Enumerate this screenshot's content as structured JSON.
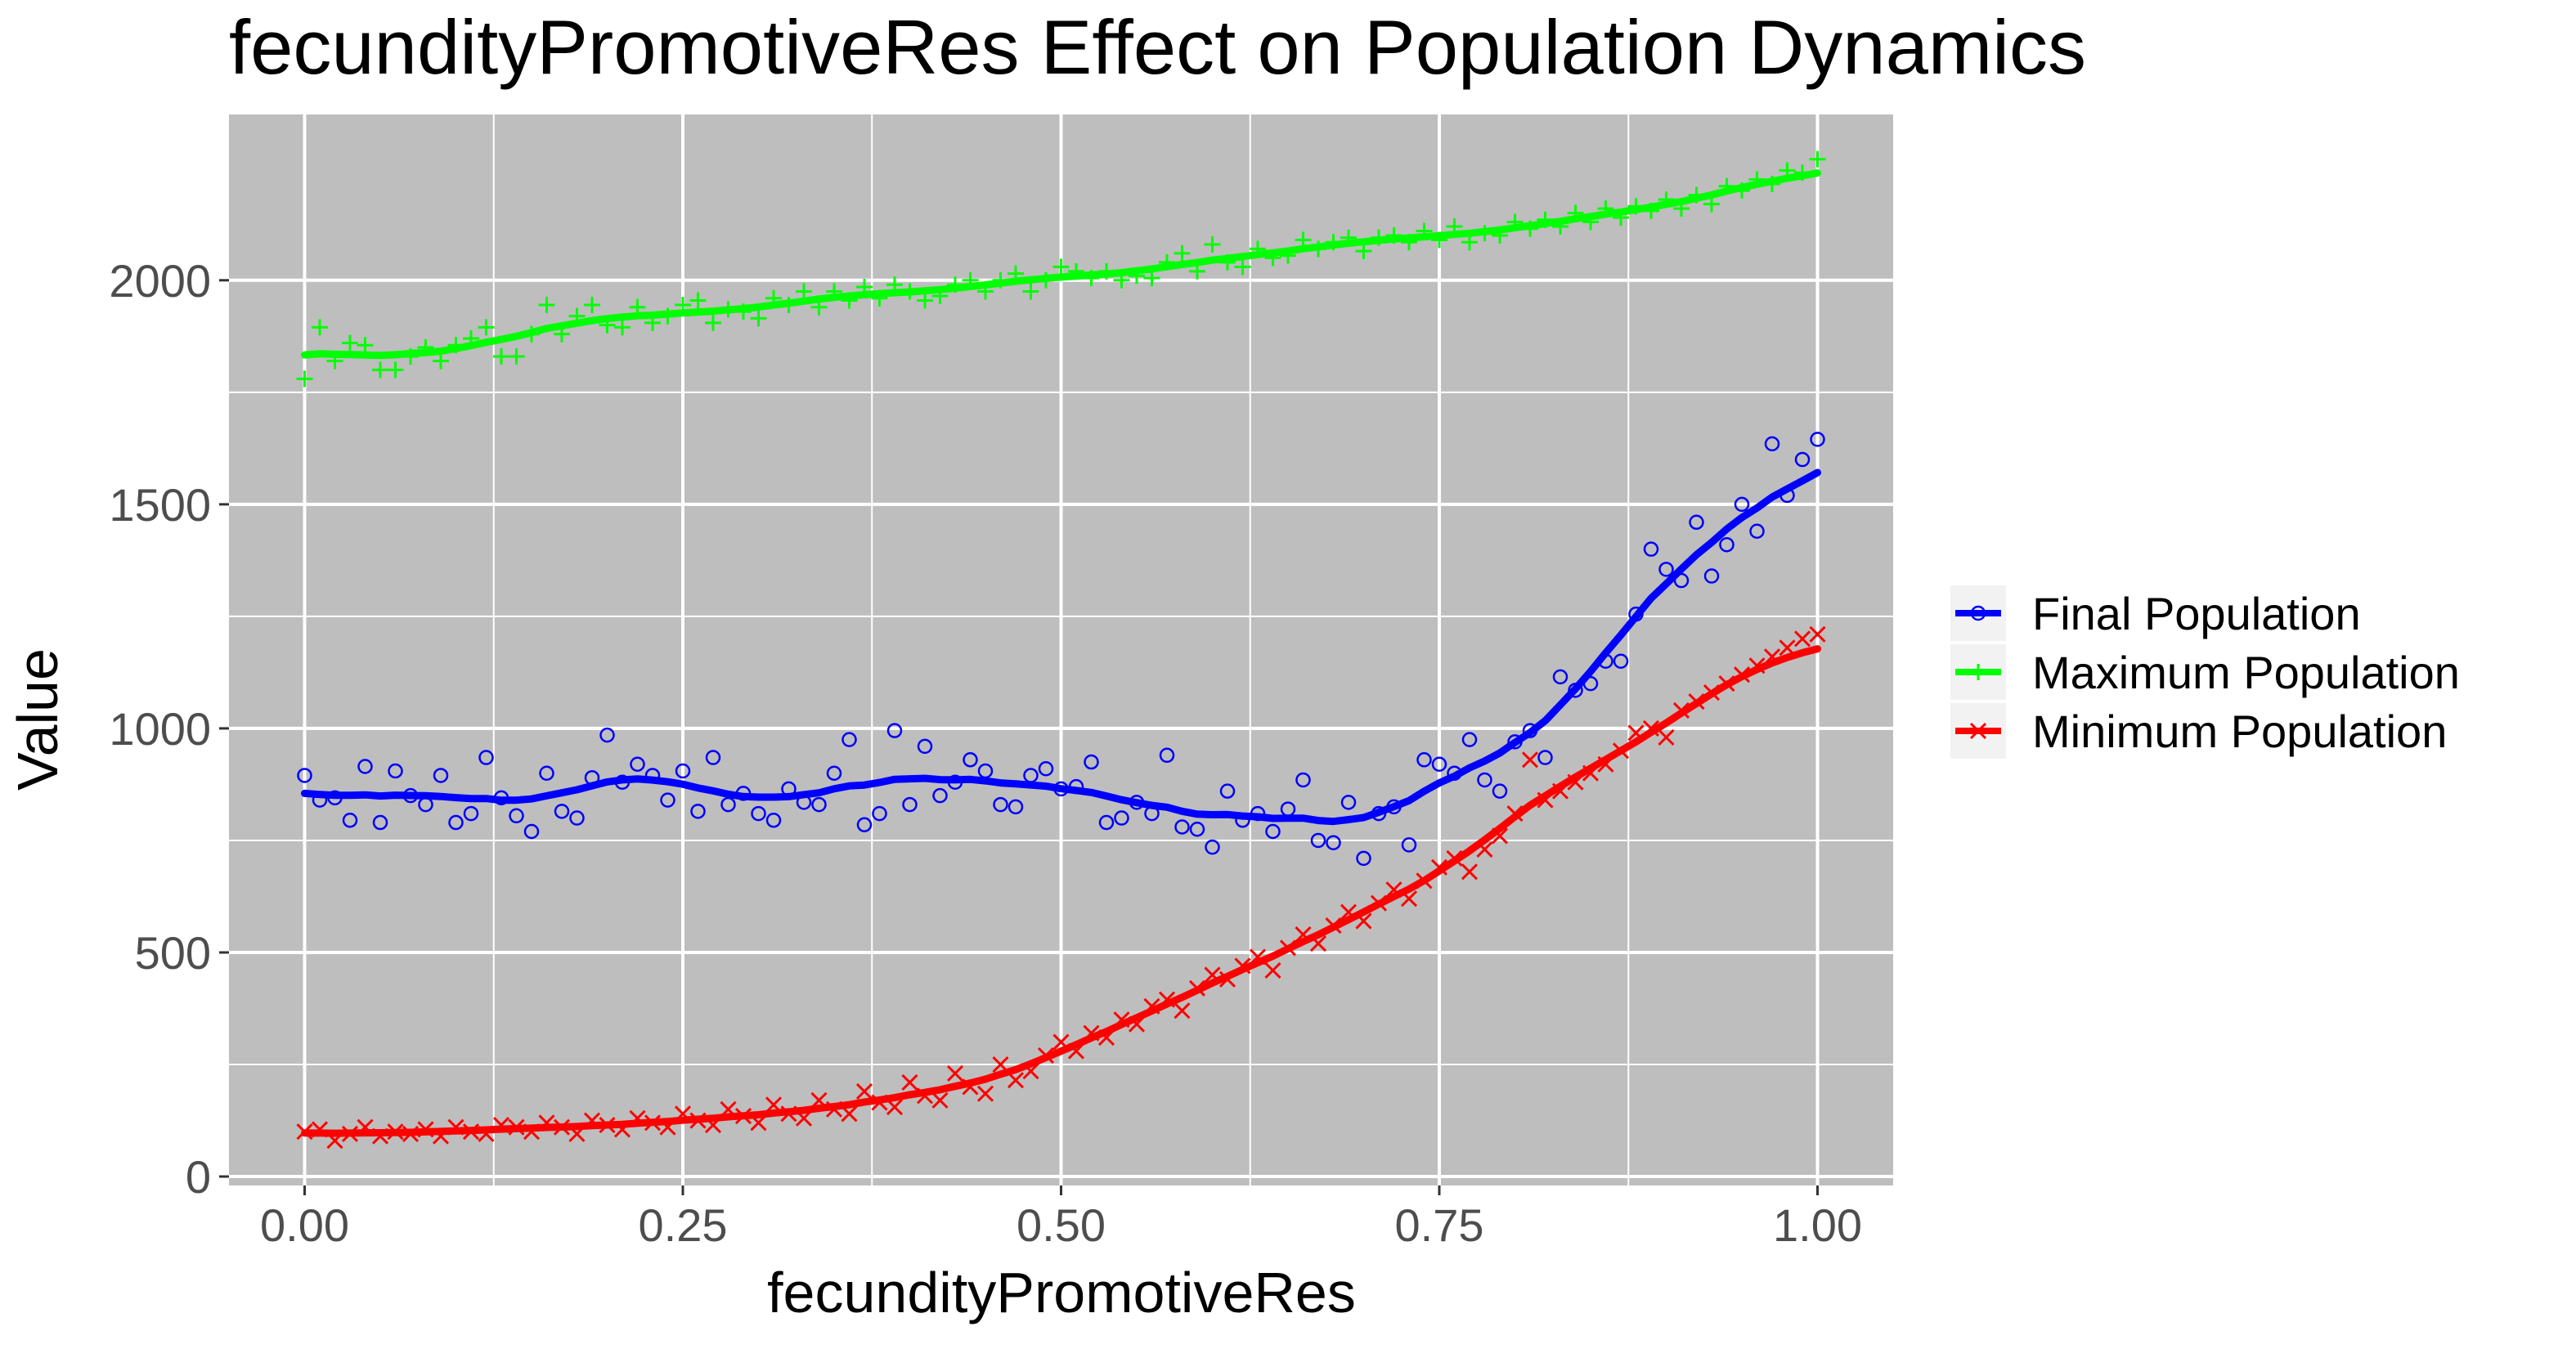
{
  "chart_data": {
    "type": "scatter",
    "title": "fecundityPromotiveRes Effect on Population Dynamics",
    "xlabel": "fecundityPromotiveRes",
    "ylabel": "Value",
    "xlim": [
      -0.05,
      1.05
    ],
    "ylim": [
      -20,
      2370
    ],
    "x_ticks": [
      0,
      0.25,
      0.5,
      0.75,
      1
    ],
    "x_tick_labels": [
      "0.00",
      "0.25",
      "0.50",
      "0.75",
      "1.00"
    ],
    "y_ticks": [
      0,
      500,
      1000,
      1500,
      2000
    ],
    "y_tick_labels": [
      "0",
      "500",
      "1000",
      "1500",
      "2000"
    ],
    "grid": true,
    "legend_position": "right",
    "panel_background": "#bebebe",
    "series": [
      {
        "name": "Final Population",
        "color": "#0000ff",
        "marker": "circle",
        "points": [
          [
            0.0,
            895
          ],
          [
            0.01,
            840
          ],
          [
            0.02,
            845
          ],
          [
            0.03,
            795
          ],
          [
            0.04,
            915
          ],
          [
            0.05,
            790
          ],
          [
            0.06,
            905
          ],
          [
            0.07,
            850
          ],
          [
            0.08,
            830
          ],
          [
            0.09,
            895
          ],
          [
            0.1,
            790
          ],
          [
            0.11,
            810
          ],
          [
            0.12,
            935
          ],
          [
            0.13,
            845
          ],
          [
            0.14,
            805
          ],
          [
            0.15,
            770
          ],
          [
            0.16,
            900
          ],
          [
            0.17,
            815
          ],
          [
            0.18,
            800
          ],
          [
            0.19,
            890
          ],
          [
            0.2,
            985
          ],
          [
            0.21,
            880
          ],
          [
            0.22,
            920
          ],
          [
            0.23,
            895
          ],
          [
            0.24,
            840
          ],
          [
            0.25,
            905
          ],
          [
            0.26,
            815
          ],
          [
            0.27,
            935
          ],
          [
            0.28,
            830
          ],
          [
            0.29,
            855
          ],
          [
            0.3,
            810
          ],
          [
            0.31,
            795
          ],
          [
            0.32,
            865
          ],
          [
            0.33,
            835
          ],
          [
            0.34,
            830
          ],
          [
            0.35,
            900
          ],
          [
            0.36,
            975
          ],
          [
            0.37,
            785
          ],
          [
            0.38,
            810
          ],
          [
            0.39,
            995
          ],
          [
            0.4,
            830
          ],
          [
            0.41,
            960
          ],
          [
            0.42,
            850
          ],
          [
            0.43,
            880
          ],
          [
            0.44,
            930
          ],
          [
            0.45,
            905
          ],
          [
            0.46,
            830
          ],
          [
            0.47,
            825
          ],
          [
            0.48,
            895
          ],
          [
            0.49,
            910
          ],
          [
            0.5,
            865
          ],
          [
            0.51,
            870
          ],
          [
            0.52,
            925
          ],
          [
            0.53,
            790
          ],
          [
            0.54,
            800
          ],
          [
            0.55,
            835
          ],
          [
            0.56,
            810
          ],
          [
            0.57,
            940
          ],
          [
            0.58,
            780
          ],
          [
            0.59,
            775
          ],
          [
            0.6,
            735
          ],
          [
            0.61,
            860
          ],
          [
            0.62,
            795
          ],
          [
            0.63,
            810
          ],
          [
            0.64,
            770
          ],
          [
            0.65,
            820
          ],
          [
            0.66,
            885
          ],
          [
            0.67,
            750
          ],
          [
            0.68,
            745
          ],
          [
            0.69,
            835
          ],
          [
            0.7,
            710
          ],
          [
            0.71,
            810
          ],
          [
            0.72,
            825
          ],
          [
            0.73,
            740
          ],
          [
            0.74,
            930
          ],
          [
            0.75,
            920
          ],
          [
            0.76,
            900
          ],
          [
            0.77,
            975
          ],
          [
            0.78,
            885
          ],
          [
            0.79,
            860
          ],
          [
            0.8,
            970
          ],
          [
            0.81,
            995
          ],
          [
            0.82,
            935
          ],
          [
            0.83,
            1115
          ],
          [
            0.84,
            1085
          ],
          [
            0.85,
            1100
          ],
          [
            0.86,
            1150
          ],
          [
            0.87,
            1150
          ],
          [
            0.88,
            1255
          ],
          [
            0.89,
            1400
          ],
          [
            0.9,
            1355
          ],
          [
            0.91,
            1330
          ],
          [
            0.92,
            1460
          ],
          [
            0.93,
            1340
          ],
          [
            0.94,
            1410
          ],
          [
            0.95,
            1500
          ],
          [
            0.96,
            1440
          ],
          [
            0.97,
            1635
          ],
          [
            0.98,
            1520
          ],
          [
            0.99,
            1600
          ],
          [
            1.0,
            1645
          ]
        ]
      },
      {
        "name": "Maximum Population",
        "color": "#00ff00",
        "marker": "plus",
        "points": [
          [
            0.0,
            1780
          ],
          [
            0.01,
            1895
          ],
          [
            0.02,
            1820
          ],
          [
            0.03,
            1860
          ],
          [
            0.04,
            1855
          ],
          [
            0.05,
            1800
          ],
          [
            0.06,
            1800
          ],
          [
            0.07,
            1830
          ],
          [
            0.08,
            1850
          ],
          [
            0.09,
            1820
          ],
          [
            0.1,
            1855
          ],
          [
            0.11,
            1870
          ],
          [
            0.12,
            1895
          ],
          [
            0.13,
            1830
          ],
          [
            0.14,
            1830
          ],
          [
            0.15,
            1880
          ],
          [
            0.16,
            1945
          ],
          [
            0.17,
            1880
          ],
          [
            0.18,
            1920
          ],
          [
            0.19,
            1945
          ],
          [
            0.2,
            1900
          ],
          [
            0.21,
            1895
          ],
          [
            0.22,
            1940
          ],
          [
            0.23,
            1905
          ],
          [
            0.24,
            1920
          ],
          [
            0.25,
            1945
          ],
          [
            0.26,
            1955
          ],
          [
            0.27,
            1905
          ],
          [
            0.28,
            1935
          ],
          [
            0.29,
            1930
          ],
          [
            0.3,
            1915
          ],
          [
            0.31,
            1960
          ],
          [
            0.32,
            1945
          ],
          [
            0.33,
            1975
          ],
          [
            0.34,
            1940
          ],
          [
            0.35,
            1975
          ],
          [
            0.36,
            1955
          ],
          [
            0.37,
            1985
          ],
          [
            0.38,
            1960
          ],
          [
            0.39,
            1990
          ],
          [
            0.4,
            1975
          ],
          [
            0.41,
            1955
          ],
          [
            0.42,
            1965
          ],
          [
            0.43,
            1990
          ],
          [
            0.44,
            2000
          ],
          [
            0.45,
            1975
          ],
          [
            0.46,
            2000
          ],
          [
            0.47,
            2015
          ],
          [
            0.48,
            1975
          ],
          [
            0.49,
            2000
          ],
          [
            0.5,
            2030
          ],
          [
            0.51,
            2020
          ],
          [
            0.52,
            2005
          ],
          [
            0.53,
            2020
          ],
          [
            0.54,
            2000
          ],
          [
            0.55,
            2010
          ],
          [
            0.56,
            2005
          ],
          [
            0.57,
            2040
          ],
          [
            0.58,
            2060
          ],
          [
            0.59,
            2020
          ],
          [
            0.6,
            2080
          ],
          [
            0.61,
            2040
          ],
          [
            0.62,
            2030
          ],
          [
            0.63,
            2070
          ],
          [
            0.64,
            2050
          ],
          [
            0.65,
            2055
          ],
          [
            0.66,
            2090
          ],
          [
            0.67,
            2070
          ],
          [
            0.68,
            2085
          ],
          [
            0.69,
            2095
          ],
          [
            0.7,
            2065
          ],
          [
            0.71,
            2095
          ],
          [
            0.72,
            2100
          ],
          [
            0.73,
            2085
          ],
          [
            0.74,
            2110
          ],
          [
            0.75,
            2090
          ],
          [
            0.76,
            2120
          ],
          [
            0.77,
            2085
          ],
          [
            0.78,
            2105
          ],
          [
            0.79,
            2100
          ],
          [
            0.8,
            2130
          ],
          [
            0.81,
            2115
          ],
          [
            0.82,
            2135
          ],
          [
            0.83,
            2120
          ],
          [
            0.84,
            2150
          ],
          [
            0.85,
            2130
          ],
          [
            0.86,
            2160
          ],
          [
            0.87,
            2140
          ],
          [
            0.88,
            2165
          ],
          [
            0.89,
            2155
          ],
          [
            0.9,
            2180
          ],
          [
            0.91,
            2160
          ],
          [
            0.92,
            2190
          ],
          [
            0.93,
            2170
          ],
          [
            0.94,
            2210
          ],
          [
            0.95,
            2200
          ],
          [
            0.96,
            2225
          ],
          [
            0.97,
            2215
          ],
          [
            0.98,
            2245
          ],
          [
            0.99,
            2240
          ],
          [
            1.0,
            2270
          ]
        ]
      },
      {
        "name": "Minimum Population",
        "color": "#ff0000",
        "marker": "cross",
        "points": [
          [
            0.0,
            100
          ],
          [
            0.01,
            105
          ],
          [
            0.02,
            80
          ],
          [
            0.03,
            95
          ],
          [
            0.04,
            110
          ],
          [
            0.05,
            90
          ],
          [
            0.06,
            100
          ],
          [
            0.07,
            95
          ],
          [
            0.08,
            105
          ],
          [
            0.09,
            90
          ],
          [
            0.1,
            110
          ],
          [
            0.11,
            100
          ],
          [
            0.12,
            95
          ],
          [
            0.13,
            115
          ],
          [
            0.14,
            110
          ],
          [
            0.15,
            100
          ],
          [
            0.16,
            120
          ],
          [
            0.17,
            110
          ],
          [
            0.18,
            95
          ],
          [
            0.19,
            125
          ],
          [
            0.2,
            115
          ],
          [
            0.21,
            105
          ],
          [
            0.22,
            130
          ],
          [
            0.23,
            120
          ],
          [
            0.24,
            110
          ],
          [
            0.25,
            140
          ],
          [
            0.26,
            125
          ],
          [
            0.27,
            115
          ],
          [
            0.28,
            150
          ],
          [
            0.29,
            135
          ],
          [
            0.3,
            120
          ],
          [
            0.31,
            160
          ],
          [
            0.32,
            140
          ],
          [
            0.33,
            130
          ],
          [
            0.34,
            170
          ],
          [
            0.35,
            150
          ],
          [
            0.36,
            140
          ],
          [
            0.37,
            190
          ],
          [
            0.38,
            165
          ],
          [
            0.39,
            155
          ],
          [
            0.4,
            210
          ],
          [
            0.41,
            180
          ],
          [
            0.42,
            170
          ],
          [
            0.43,
            230
          ],
          [
            0.44,
            200
          ],
          [
            0.45,
            185
          ],
          [
            0.46,
            250
          ],
          [
            0.47,
            215
          ],
          [
            0.48,
            235
          ],
          [
            0.49,
            270
          ],
          [
            0.5,
            300
          ],
          [
            0.51,
            280
          ],
          [
            0.52,
            320
          ],
          [
            0.53,
            310
          ],
          [
            0.54,
            350
          ],
          [
            0.55,
            340
          ],
          [
            0.56,
            380
          ],
          [
            0.57,
            395
          ],
          [
            0.58,
            370
          ],
          [
            0.59,
            420
          ],
          [
            0.6,
            450
          ],
          [
            0.61,
            440
          ],
          [
            0.62,
            470
          ],
          [
            0.63,
            490
          ],
          [
            0.64,
            460
          ],
          [
            0.65,
            510
          ],
          [
            0.66,
            540
          ],
          [
            0.67,
            520
          ],
          [
            0.68,
            560
          ],
          [
            0.69,
            590
          ],
          [
            0.7,
            570
          ],
          [
            0.71,
            610
          ],
          [
            0.72,
            640
          ],
          [
            0.73,
            620
          ],
          [
            0.74,
            660
          ],
          [
            0.75,
            690
          ],
          [
            0.76,
            710
          ],
          [
            0.77,
            680
          ],
          [
            0.78,
            730
          ],
          [
            0.79,
            760
          ],
          [
            0.8,
            810
          ],
          [
            0.81,
            930
          ],
          [
            0.82,
            840
          ],
          [
            0.83,
            860
          ],
          [
            0.84,
            880
          ],
          [
            0.85,
            900
          ],
          [
            0.86,
            920
          ],
          [
            0.87,
            950
          ],
          [
            0.88,
            990
          ],
          [
            0.89,
            1000
          ],
          [
            0.9,
            980
          ],
          [
            0.91,
            1040
          ],
          [
            0.92,
            1060
          ],
          [
            0.93,
            1080
          ],
          [
            0.94,
            1100
          ],
          [
            0.95,
            1120
          ],
          [
            0.96,
            1140
          ],
          [
            0.97,
            1160
          ],
          [
            0.98,
            1180
          ],
          [
            0.99,
            1200
          ],
          [
            1.0,
            1210
          ]
        ]
      }
    ]
  }
}
